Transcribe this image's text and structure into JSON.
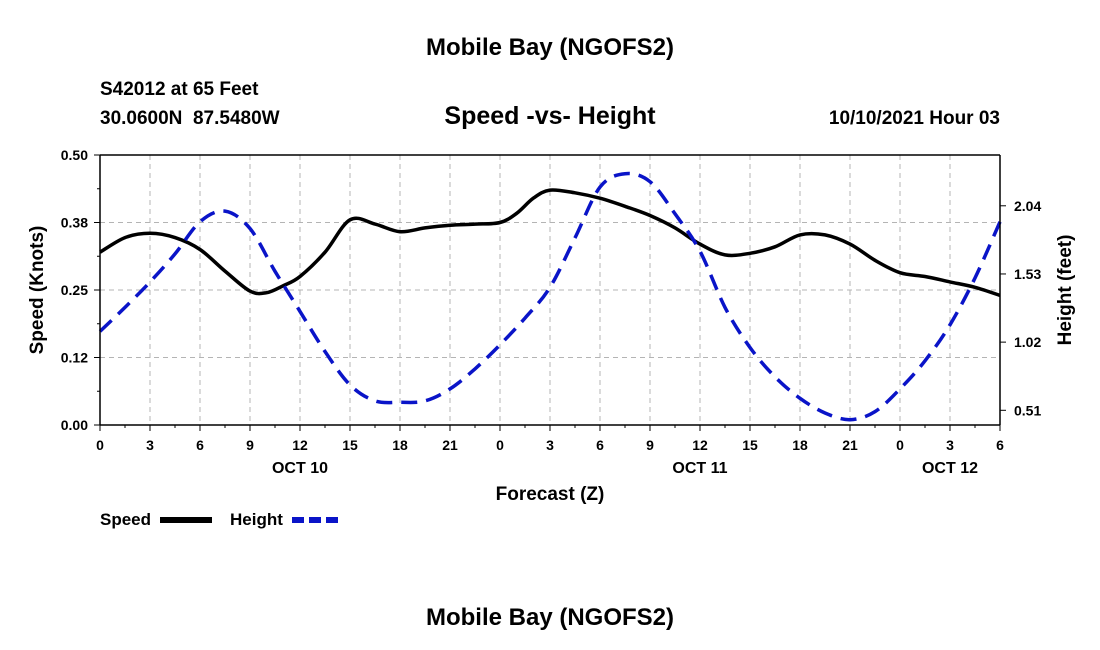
{
  "page": {
    "title_top": "Mobile Bay (NGOFS2)",
    "title_bottom": "Mobile Bay (NGOFS2)",
    "station": "S42012 at 65 Feet",
    "coords": "30.0600N  87.5480W",
    "chart_title": "Speed -vs- Height",
    "timestamp": "10/10/2021 Hour 03"
  },
  "chart_data": {
    "type": "line",
    "xlabel": "Forecast (Z)",
    "ylabel": "Speed (Knots)",
    "y2label": "Height (feet)",
    "x_ticks": [
      "0",
      "3",
      "6",
      "9",
      "12",
      "15",
      "18",
      "21",
      "0",
      "3",
      "6",
      "9",
      "12",
      "15",
      "18",
      "21",
      "0",
      "3",
      "6"
    ],
    "day_labels": [
      {
        "label": "OCT 10",
        "hour": 12
      },
      {
        "label": "OCT 11",
        "hour": 36
      },
      {
        "label": "OCT 12",
        "hour": 51
      }
    ],
    "xlim": [
      0,
      54
    ],
    "ylim": [
      0,
      0.5
    ],
    "y_ticks": [
      "0.00",
      "0.12",
      "0.25",
      "0.38",
      "0.50"
    ],
    "y2lim": [
      0.4,
      2.42
    ],
    "y2_ticks": [
      "0.51",
      "1.02",
      "1.53",
      "2.04"
    ],
    "grid": true,
    "legend_position": "bottom-left",
    "colors": {
      "speed": "#000000",
      "height": "#0a14c8"
    },
    "series": [
      {
        "name": "Speed",
        "style": "solid",
        "axis": "left",
        "x": [
          0,
          1.5,
          3,
          4.5,
          6,
          7.5,
          9,
          10,
          11,
          12,
          13.5,
          15,
          16.5,
          18,
          19.5,
          21,
          22.5,
          24,
          25,
          26,
          27,
          28.5,
          30,
          31.5,
          33,
          34.5,
          36,
          37.5,
          39,
          40.5,
          42,
          43.5,
          45,
          46.5,
          48,
          49.5,
          51,
          52.5,
          54
        ],
        "values": [
          0.32,
          0.347,
          0.355,
          0.347,
          0.325,
          0.285,
          0.248,
          0.245,
          0.258,
          0.275,
          0.32,
          0.38,
          0.372,
          0.358,
          0.365,
          0.37,
          0.372,
          0.375,
          0.392,
          0.42,
          0.435,
          0.43,
          0.42,
          0.405,
          0.388,
          0.365,
          0.335,
          0.315,
          0.318,
          0.33,
          0.352,
          0.352,
          0.335,
          0.305,
          0.282,
          0.275,
          0.265,
          0.255,
          0.24
        ]
      },
      {
        "name": "Height",
        "style": "dashed",
        "axis": "right",
        "x": [
          0,
          1.5,
          3,
          4.5,
          6,
          7.5,
          9,
          10.5,
          12,
          13.5,
          15,
          16.5,
          18,
          19.5,
          21,
          22.5,
          24,
          25.5,
          27,
          28.5,
          30,
          31.5,
          33,
          34.5,
          36,
          37.5,
          39,
          40.5,
          42,
          43.5,
          45,
          46.5,
          48,
          49.5,
          51,
          52.5,
          54
        ],
        "values": [
          1.1,
          1.28,
          1.47,
          1.68,
          1.92,
          2.0,
          1.87,
          1.55,
          1.25,
          0.95,
          0.7,
          0.58,
          0.57,
          0.58,
          0.67,
          0.82,
          1.0,
          1.2,
          1.43,
          1.8,
          2.18,
          2.28,
          2.22,
          1.98,
          1.7,
          1.28,
          0.98,
          0.76,
          0.6,
          0.49,
          0.44,
          0.5,
          0.67,
          0.88,
          1.15,
          1.5,
          1.92
        ]
      }
    ],
    "legend": [
      {
        "label": "Speed",
        "series": "Speed"
      },
      {
        "label": "Height",
        "series": "Height"
      }
    ]
  }
}
